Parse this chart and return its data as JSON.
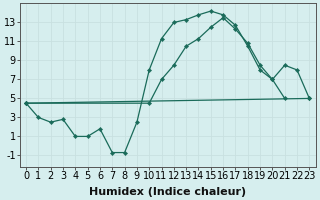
{
  "xlabel": "Humidex (Indice chaleur)",
  "background_color": "#d6eeee",
  "line_color": "#1a6b5a",
  "grid_color": "#c8e0e0",
  "xlim": [
    -0.5,
    23.5
  ],
  "ylim": [
    -2.2,
    15.0
  ],
  "xticks": [
    0,
    1,
    2,
    3,
    4,
    5,
    6,
    7,
    8,
    9,
    10,
    11,
    12,
    13,
    14,
    15,
    16,
    17,
    18,
    19,
    20,
    21,
    22,
    23
  ],
  "yticks": [
    -1,
    1,
    3,
    5,
    7,
    9,
    11,
    13
  ],
  "font_size_xlabel": 8,
  "tick_fontsize": 7,
  "line1_x": [
    0,
    1,
    2,
    3,
    4,
    5,
    6,
    7,
    8,
    9,
    10,
    11,
    12,
    13,
    14,
    15,
    16,
    17,
    18,
    19,
    20,
    21
  ],
  "line1_y": [
    4.5,
    3.0,
    2.5,
    2.8,
    1.0,
    1.0,
    1.8,
    -0.7,
    -0.7,
    2.5,
    8.0,
    11.3,
    13.0,
    13.3,
    13.8,
    14.2,
    13.8,
    12.7,
    10.5,
    8.0,
    7.0,
    5.0
  ],
  "line2_x": [
    0,
    23
  ],
  "line2_y": [
    4.5,
    5.0
  ],
  "line3_x": [
    0,
    10,
    11,
    12,
    13,
    14,
    15,
    16,
    17,
    18,
    19,
    20,
    21,
    22,
    23
  ],
  "line3_y": [
    4.5,
    4.5,
    7.0,
    8.5,
    10.5,
    11.3,
    12.5,
    13.5,
    12.3,
    10.8,
    8.5,
    7.0,
    8.5,
    8.0,
    5.0
  ]
}
